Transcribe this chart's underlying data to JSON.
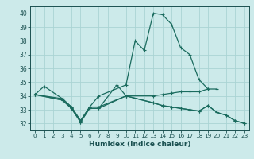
{
  "xlabel": "Humidex (Indice chaleur)",
  "bg_color": "#cceaea",
  "grid_color": "#aad4d4",
  "line_color": "#1a6b5e",
  "xlim": [
    -0.5,
    23.5
  ],
  "ylim": [
    31.5,
    40.5
  ],
  "xticks": [
    0,
    1,
    2,
    3,
    4,
    5,
    6,
    7,
    8,
    9,
    10,
    11,
    12,
    13,
    14,
    15,
    16,
    17,
    18,
    19,
    20,
    21,
    22,
    23
  ],
  "yticks": [
    32,
    33,
    34,
    35,
    36,
    37,
    38,
    39,
    40
  ],
  "series": [
    {
      "x": [
        0,
        1,
        3,
        4,
        5,
        6,
        7,
        10,
        11,
        12,
        13,
        14,
        15,
        16,
        17,
        18,
        19
      ],
      "y": [
        34.1,
        34.7,
        33.8,
        33.2,
        32.2,
        33.2,
        34.0,
        34.8,
        38.0,
        37.3,
        40.0,
        39.9,
        39.2,
        37.5,
        37.0,
        35.2,
        34.5
      ]
    },
    {
      "x": [
        0,
        3,
        4,
        5,
        6,
        7,
        10,
        13,
        14,
        15,
        16,
        17,
        18,
        19,
        20
      ],
      "y": [
        34.1,
        33.8,
        33.2,
        32.2,
        33.2,
        33.2,
        34.0,
        34.0,
        34.1,
        34.2,
        34.3,
        34.3,
        34.3,
        34.5,
        34.5
      ]
    },
    {
      "x": [
        0,
        3,
        4,
        5,
        6,
        7,
        9,
        10,
        13,
        14,
        15,
        16,
        17,
        18,
        19,
        20,
        21,
        22,
        23
      ],
      "y": [
        34.1,
        33.7,
        33.1,
        32.1,
        33.1,
        33.1,
        34.8,
        34.0,
        33.5,
        33.3,
        33.2,
        33.1,
        33.0,
        32.9,
        33.3,
        32.8,
        32.6,
        32.2,
        32.0
      ]
    },
    {
      "x": [
        0,
        3,
        4,
        5,
        6,
        7,
        10,
        13,
        14,
        15,
        16,
        17,
        18,
        19,
        20,
        21,
        22,
        23
      ],
      "y": [
        34.1,
        33.7,
        33.1,
        32.1,
        33.1,
        33.1,
        34.0,
        33.5,
        33.3,
        33.2,
        33.1,
        33.0,
        32.9,
        33.3,
        32.8,
        32.6,
        32.2,
        32.0
      ]
    }
  ]
}
